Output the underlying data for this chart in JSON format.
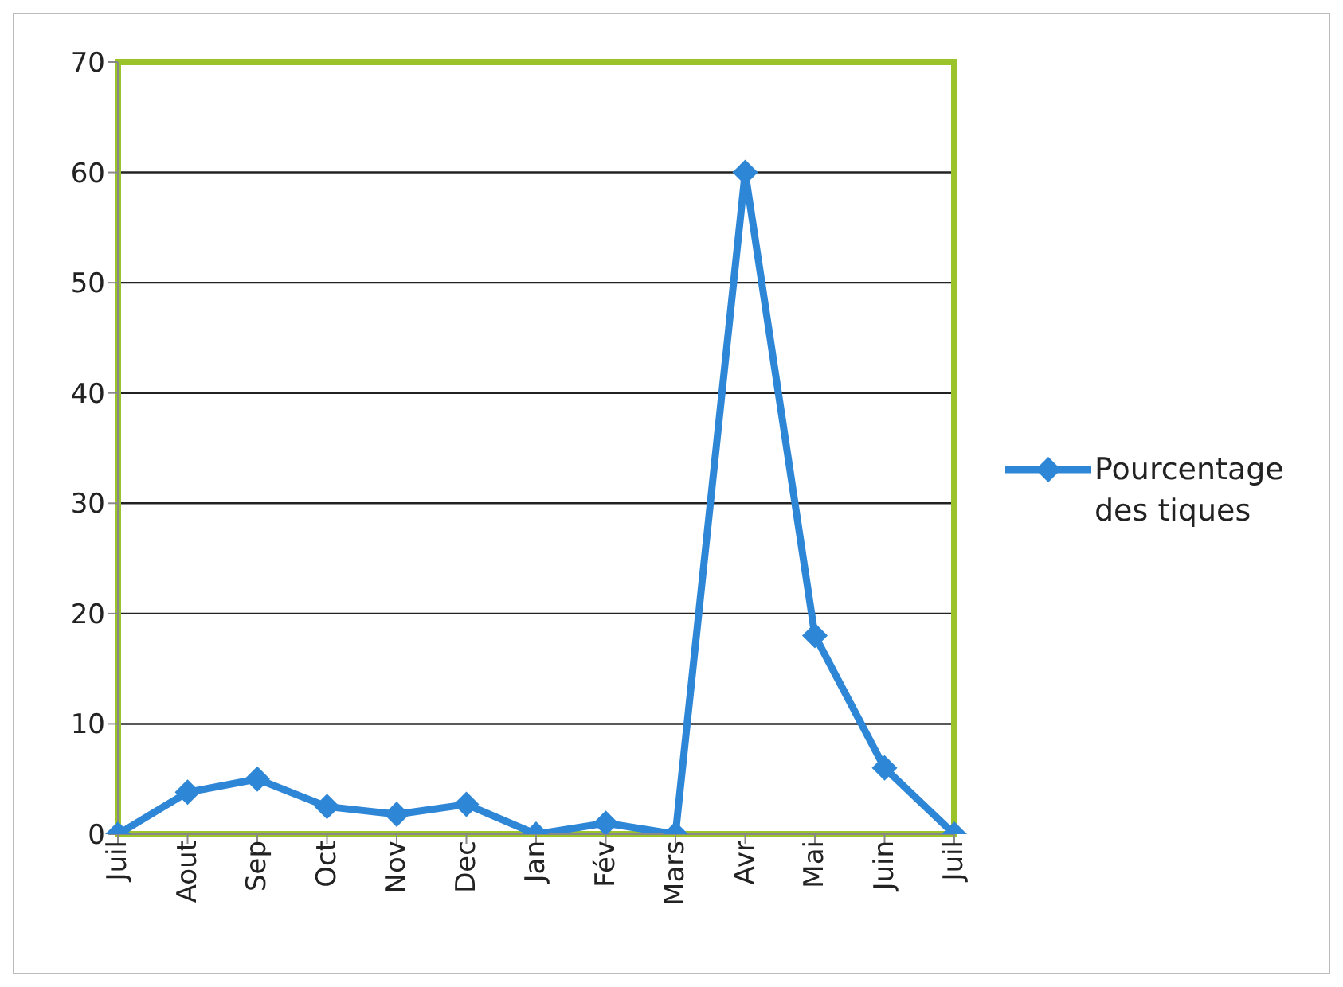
{
  "chart_data": {
    "type": "line",
    "categories": [
      "Juil",
      "Aout",
      "Sep",
      "Oct",
      "Nov",
      "Dec",
      "Jan",
      "Fév",
      "Mars",
      "Avr",
      "Mai",
      "Juin",
      "Juil"
    ],
    "series": [
      {
        "name": "Pourcentage des tiques",
        "color": "#2e86d6",
        "values": [
          0,
          3.8,
          5,
          2.5,
          1.8,
          2.7,
          0,
          1,
          0,
          60,
          18,
          6,
          0
        ]
      }
    ],
    "ylim": [
      0,
      70
    ],
    "yticks": [
      0,
      10,
      20,
      30,
      40,
      50,
      60,
      70
    ],
    "grid": "y",
    "legend": "right",
    "marker": "diamond",
    "line_style": "solid"
  }
}
